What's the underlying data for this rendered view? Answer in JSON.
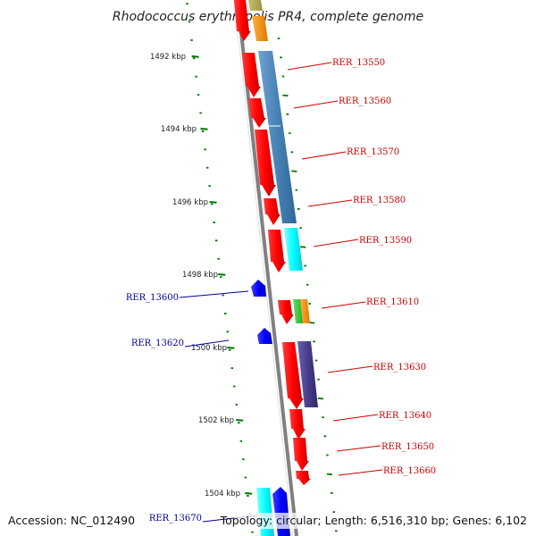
{
  "title": "Rhodococcus erythropolis PR4, complete genome",
  "footer": {
    "accession": "Accession: NC_012490",
    "topology": "Topology: circular; Length: 6,516,310 bp; Genes: 6,102"
  },
  "scale_labels": [
    "1492 kbp",
    "1494 kbp",
    "1496 kbp",
    "1498 kbp",
    "1500 kbp",
    "1502 kbp",
    "1504 kbp"
  ],
  "genes_right": [
    "RER_13550",
    "RER_13560",
    "RER_13570",
    "RER_13580",
    "RER_13590",
    "RER_13610",
    "RER_13630",
    "RER_13640",
    "RER_13650",
    "RER_13660"
  ],
  "genes_left": [
    "RER_13600",
    "RER_13620",
    "RER_13670"
  ],
  "colors": {
    "forward_cds": "#ff0000",
    "reverse_cds": "#0000ff",
    "feature_steelblue": "#4682b4",
    "feature_cyan": "#00ffff",
    "feature_orange": "#ff8c00",
    "feature_green": "#33cc33",
    "feature_purple": "#483d8b",
    "backbone": "#808080",
    "ticks": "#007700",
    "right_label": "#cc0000",
    "left_label": "#000099"
  }
}
